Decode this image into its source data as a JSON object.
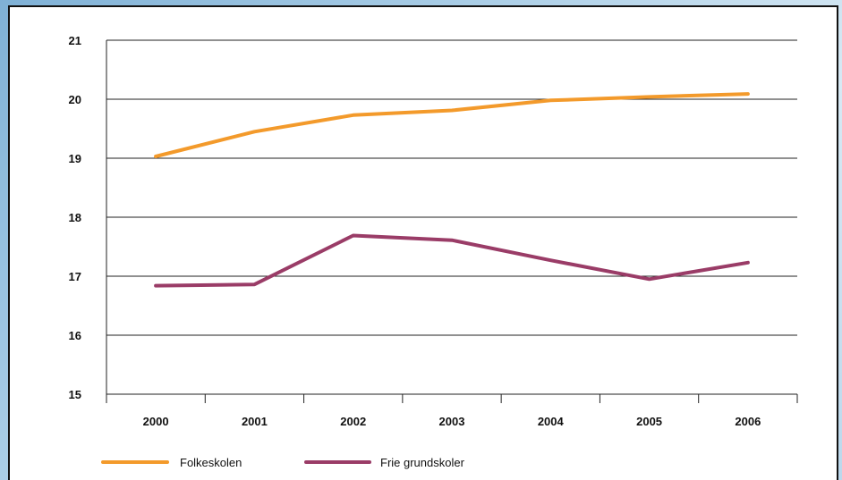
{
  "chart_data": {
    "type": "line",
    "title": "",
    "xlabel": "",
    "ylabel": "",
    "categories": [
      "2000",
      "2001",
      "2002",
      "2003",
      "2004",
      "2005",
      "2006"
    ],
    "ylim": [
      15,
      21
    ],
    "yticks": [
      "15",
      "16",
      "17",
      "18",
      "19",
      "20",
      "21"
    ],
    "grid": "horizontal",
    "legend_position": "bottom-left",
    "series": [
      {
        "name": "Folkeskolen",
        "color": "#f39a2b",
        "values": [
          19.03,
          19.45,
          19.73,
          19.81,
          19.98,
          20.04,
          20.09
        ]
      },
      {
        "name": "Frie grundskoler",
        "color": "#9a3c67",
        "values": [
          16.84,
          16.86,
          17.69,
          17.61,
          17.27,
          16.95,
          17.23
        ]
      }
    ]
  }
}
